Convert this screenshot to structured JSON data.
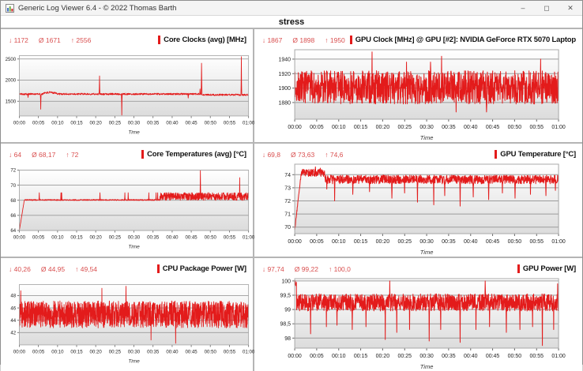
{
  "window": {
    "title": "Generic Log Viewer 6.4 - © 2022 Thomas Barth",
    "controls": {
      "minimize": "–",
      "maximize": "◻",
      "close": "✕"
    }
  },
  "page_title": "stress",
  "colors": {
    "series": "#e31b1b",
    "stats_text": "#d94f4f",
    "grid": "#9b9b9b",
    "plot_border": "#a8a8a8",
    "plot_bg_top": "#ffffff",
    "plot_bg_bottom": "#dcdcdc"
  },
  "time_axis_label": "Time",
  "chart_data": [
    {
      "type": "line",
      "id": "core-clocks",
      "title": "Core Clocks (avg) [MHz]",
      "stats": {
        "min": 1172,
        "avg": 1671,
        "max": 2556,
        "min_label": "↓ 1172",
        "avg_label": "Ø 1671",
        "max_label": "↑ 2556"
      },
      "xlabel": "Time",
      "x_range_minutes": [
        0,
        60
      ],
      "x_ticks": [
        "00:00",
        "00:05",
        "00:10",
        "00:15",
        "00:20",
        "00:25",
        "00:30",
        "00:35",
        "00:40",
        "00:45",
        "00:50",
        "00:55",
        "01:00"
      ],
      "y_range": [
        1150,
        2580
      ],
      "y_ticks": [
        {
          "v": 1500,
          "label": "1500"
        },
        {
          "v": 2000,
          "label": "2000"
        },
        {
          "v": 2500,
          "label": "2500"
        }
      ],
      "gen": {
        "seed": 101,
        "samples": 1050,
        "skew": 0.5,
        "clamp": [
          1172,
          2556
        ],
        "segments": [
          {
            "from": 0,
            "to": 60,
            "mean": 1670,
            "noise": 20
          },
          {
            "from": 6.3,
            "to": 9.8,
            "mean": 1703,
            "noise": 26
          },
          {
            "from": 47.8,
            "to": 60,
            "mean": 1652,
            "noise": 20
          }
        ],
        "spikes": [
          {
            "t": 2.3,
            "v": 1590
          },
          {
            "t": 5.6,
            "v": 1310
          },
          {
            "t": 21,
            "v": 2100
          },
          {
            "t": 26.8,
            "v": 1172
          },
          {
            "t": 44.2,
            "v": 1575
          },
          {
            "t": 47.3,
            "v": 1790
          },
          {
            "t": 47.7,
            "v": 2400
          },
          {
            "t": 58.1,
            "v": 2556
          }
        ]
      }
    },
    {
      "type": "line",
      "id": "gpu-clock",
      "title": "GPU Clock [MHz] @ GPU [#2]: NVIDIA GeForce RTX 5070 Laptop",
      "stats": {
        "min": 1867,
        "avg": 1898,
        "max": 1950,
        "min_label": "↓ 1867",
        "avg_label": "Ø 1898",
        "max_label": "↑ 1950"
      },
      "xlabel": "Time",
      "x_range_minutes": [
        0,
        60
      ],
      "x_ticks": [
        "00:00",
        "00:05",
        "00:10",
        "00:15",
        "00:20",
        "00:25",
        "00:30",
        "00:35",
        "00:40",
        "00:45",
        "00:50",
        "00:55",
        "01:00"
      ],
      "y_range": [
        1857,
        1953
      ],
      "y_ticks": [
        {
          "v": 1880,
          "label": "1880"
        },
        {
          "v": 1900,
          "label": "1900"
        },
        {
          "v": 1920,
          "label": "1920"
        },
        {
          "v": 1940,
          "label": "1940"
        }
      ],
      "gen": {
        "seed": 202,
        "samples": 1250,
        "skew": 0.5,
        "clamp": [
          1867,
          1950
        ],
        "segments": [
          {
            "from": 0,
            "to": 60,
            "mean": 1901,
            "noise": 23
          }
        ],
        "spikes": [
          {
            "t": 17.6,
            "v": 1950
          },
          {
            "t": 25.4,
            "v": 1936
          },
          {
            "t": 30.9,
            "v": 1936
          },
          {
            "t": 33.4,
            "v": 1944
          },
          {
            "t": 36.7,
            "v": 1867
          },
          {
            "t": 43.6,
            "v": 1867
          },
          {
            "t": 55.9,
            "v": 1940
          }
        ]
      }
    },
    {
      "type": "line",
      "id": "core-temperatures",
      "title": "Core Temperatures (avg) [°C]",
      "stats": {
        "min": 64,
        "avg": 68.17,
        "max": 72,
        "min_label": "↓ 64",
        "avg_label": "Ø 68,17",
        "max_label": "↑ 72"
      },
      "xlabel": "Time",
      "x_range_minutes": [
        0,
        60
      ],
      "x_ticks": [
        "00:00",
        "00:05",
        "00:10",
        "00:15",
        "00:20",
        "00:25",
        "00:30",
        "00:35",
        "00:40",
        "00:45",
        "00:50",
        "00:55",
        "01:00"
      ],
      "y_range": [
        64,
        72
      ],
      "y_ticks": [
        {
          "v": 64,
          "label": "64"
        },
        {
          "v": 66,
          "label": "66"
        },
        {
          "v": 68,
          "label": "68"
        },
        {
          "v": 70,
          "label": "70"
        },
        {
          "v": 72,
          "label": "72"
        }
      ],
      "gen": {
        "seed": 303,
        "samples": 1300,
        "skew": 0.5,
        "clamp": [
          64,
          72
        ],
        "segments": [
          {
            "from": 0,
            "to": 1.3,
            "v0": 64,
            "v1": 68,
            "noise": 0.05
          },
          {
            "from": 1.3,
            "to": 36.8,
            "mean": 68.04,
            "noise": 0.07
          },
          {
            "from": 36.8,
            "to": 60,
            "mean": 68.5,
            "noise": 0.52
          }
        ],
        "spikes": [
          {
            "t": 5.2,
            "v": 69
          },
          {
            "t": 10.9,
            "v": 69
          },
          {
            "t": 11.1,
            "v": 69
          },
          {
            "t": 21.1,
            "v": 69
          },
          {
            "t": 27.6,
            "v": 69
          },
          {
            "t": 28.5,
            "v": 69
          },
          {
            "t": 33.9,
            "v": 69
          },
          {
            "t": 35.8,
            "v": 69
          },
          {
            "t": 36.2,
            "v": 69
          },
          {
            "t": 47.4,
            "v": 72
          },
          {
            "t": 57.7,
            "v": 71
          }
        ]
      }
    },
    {
      "type": "line",
      "id": "gpu-temperature",
      "title": "GPU Temperature [°C]",
      "stats": {
        "min": 69.8,
        "avg": 73.63,
        "max": 74.6,
        "min_label": "↓ 69,8",
        "avg_label": "Ø 73,63",
        "max_label": "↑ 74,6"
      },
      "xlabel": "Time",
      "x_range_minutes": [
        0,
        60
      ],
      "x_ticks": [
        "00:00",
        "00:05",
        "00:10",
        "00:15",
        "00:20",
        "00:25",
        "00:30",
        "00:35",
        "00:40",
        "00:45",
        "00:50",
        "00:55",
        "01:00"
      ],
      "y_range": [
        69.5,
        74.8
      ],
      "y_ticks": [
        {
          "v": 70,
          "label": "70"
        },
        {
          "v": 71,
          "label": "71"
        },
        {
          "v": 72,
          "label": "72"
        },
        {
          "v": 73,
          "label": "73"
        },
        {
          "v": 74,
          "label": "74"
        }
      ],
      "gen": {
        "seed": 404,
        "samples": 1250,
        "skew": 0.6,
        "clamp": [
          69.8,
          74.6
        ],
        "segments": [
          {
            "from": 0,
            "to": 1.4,
            "v0": 69.8,
            "v1": 73.9,
            "noise": 0.12
          },
          {
            "from": 1.4,
            "to": 6.8,
            "mean": 74.2,
            "noise": 0.28
          },
          {
            "from": 6.8,
            "to": 60,
            "mean": 73.7,
            "noise": 0.33
          }
        ],
        "spikes": [
          {
            "t": 4.7,
            "v": 74.6
          },
          {
            "t": 5.8,
            "v": 74.5
          },
          {
            "t": 7.3,
            "v": 72.9
          },
          {
            "t": 9.1,
            "v": 72.0
          },
          {
            "t": 13.2,
            "v": 72.5
          },
          {
            "t": 17,
            "v": 72.7
          },
          {
            "t": 22.1,
            "v": 72.2
          },
          {
            "t": 25,
            "v": 72.6
          },
          {
            "t": 27.9,
            "v": 71.9
          },
          {
            "t": 31.6,
            "v": 71.7
          },
          {
            "t": 34.1,
            "v": 72.4
          },
          {
            "t": 37.6,
            "v": 71.6
          },
          {
            "t": 40.6,
            "v": 72.3
          },
          {
            "t": 44.1,
            "v": 72.1
          },
          {
            "t": 47.2,
            "v": 72.6
          },
          {
            "t": 50.1,
            "v": 72.2
          },
          {
            "t": 53.6,
            "v": 72.5
          },
          {
            "t": 57.1,
            "v": 72.4
          },
          {
            "t": 59.3,
            "v": 72.8
          }
        ]
      }
    },
    {
      "type": "line",
      "id": "cpu-package-power",
      "title": "CPU Package Power [W]",
      "stats": {
        "min": 40.26,
        "avg": 44.95,
        "max": 49.54,
        "min_label": "↓ 40,26",
        "avg_label": "Ø 44,95",
        "max_label": "↑ 49,54"
      },
      "xlabel": "Time",
      "x_range_minutes": [
        0,
        60
      ],
      "x_ticks": [
        "00:00",
        "00:05",
        "00:10",
        "00:15",
        "00:20",
        "00:25",
        "00:30",
        "00:35",
        "00:40",
        "00:45",
        "00:50",
        "00:55",
        "01:00"
      ],
      "y_range": [
        40.0,
        49.8
      ],
      "y_ticks": [
        {
          "v": 42,
          "label": "42"
        },
        {
          "v": 44,
          "label": "44"
        },
        {
          "v": 46,
          "label": "46"
        },
        {
          "v": 48,
          "label": "48"
        }
      ],
      "gen": {
        "seed": 505,
        "samples": 1400,
        "skew": 0.5,
        "clamp": [
          40.26,
          49.54
        ],
        "segments": [
          {
            "from": 0,
            "to": 60,
            "mean": 44.95,
            "noise": 2.2
          }
        ],
        "spikes": [
          {
            "t": 0.4,
            "v": 48.8
          },
          {
            "t": 21.6,
            "v": 49.2
          },
          {
            "t": 27.9,
            "v": 49.54
          },
          {
            "t": 34.5,
            "v": 40.8
          },
          {
            "t": 40.9,
            "v": 40.26
          }
        ]
      }
    },
    {
      "type": "line",
      "id": "gpu-power",
      "title": "GPU Power [W]",
      "stats": {
        "min": 97.74,
        "avg": 99.22,
        "max": 100.0,
        "min_label": "↓ 97,74",
        "avg_label": "Ø 99,22",
        "max_label": "↑ 100,0"
      },
      "xlabel": "Time",
      "x_range_minutes": [
        0,
        60
      ],
      "x_ticks": [
        "00:00",
        "00:05",
        "00:10",
        "00:15",
        "00:20",
        "00:25",
        "00:30",
        "00:35",
        "00:40",
        "00:45",
        "00:50",
        "00:55",
        "01:00"
      ],
      "y_range": [
        97.65,
        100.08
      ],
      "y_ticks": [
        {
          "v": 98,
          "label": "98"
        },
        {
          "v": 98.5,
          "label": "98,5"
        },
        {
          "v": 99,
          "label": "99"
        },
        {
          "v": 99.5,
          "label": "99,5"
        },
        {
          "v": 100,
          "label": "100"
        }
      ],
      "gen": {
        "seed": 606,
        "samples": 1400,
        "skew": 0.62,
        "clamp": [
          97.74,
          100.0
        ],
        "segments": [
          {
            "from": 0,
            "to": 0.4,
            "mean": 99.9,
            "noise": 0.08
          },
          {
            "from": 0.4,
            "to": 60,
            "mean": 99.32,
            "noise": 0.3
          }
        ],
        "spikes": [
          {
            "t": 0.15,
            "v": 100.0
          },
          {
            "t": 3.6,
            "v": 98.15
          },
          {
            "t": 7.2,
            "v": 98.4
          },
          {
            "t": 9.6,
            "v": 98.45
          },
          {
            "t": 13.1,
            "v": 98.3
          },
          {
            "t": 16.2,
            "v": 98.4
          },
          {
            "t": 20.6,
            "v": 97.95
          },
          {
            "t": 21.6,
            "v": 100.0
          },
          {
            "t": 23.2,
            "v": 98.2
          },
          {
            "t": 26.1,
            "v": 98.3
          },
          {
            "t": 30.6,
            "v": 97.9
          },
          {
            "t": 33.2,
            "v": 98.3
          },
          {
            "t": 37.6,
            "v": 97.85
          },
          {
            "t": 41.2,
            "v": 98.3
          },
          {
            "t": 43.3,
            "v": 100.0
          },
          {
            "t": 44.3,
            "v": 98.4
          },
          {
            "t": 48.1,
            "v": 98.2
          },
          {
            "t": 51.2,
            "v": 98.3
          },
          {
            "t": 54.1,
            "v": 98.4
          },
          {
            "t": 56.3,
            "v": 97.74
          },
          {
            "t": 58.9,
            "v": 98.3
          },
          {
            "t": 59.8,
            "v": 99.9
          }
        ]
      }
    }
  ]
}
